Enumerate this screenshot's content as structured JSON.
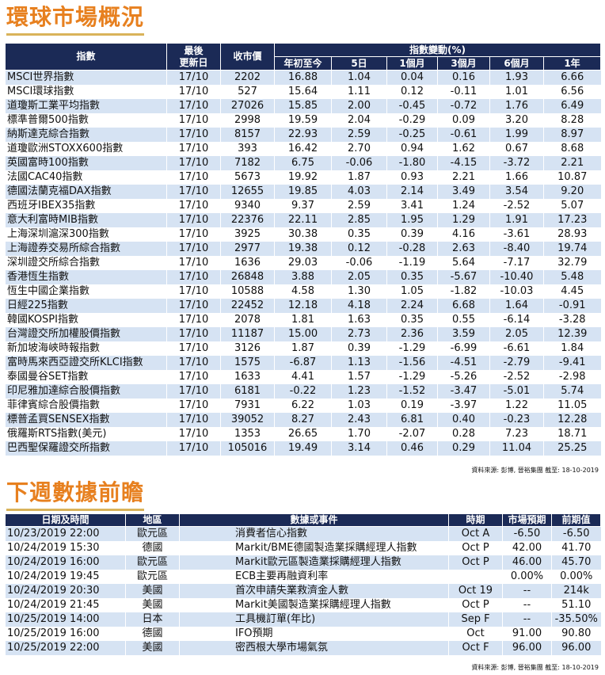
{
  "markets": {
    "title": "環球市場概況",
    "headers": {
      "index": "指數",
      "last_update": "最後\n更新日",
      "close": "收市價",
      "change_group": "指數變動(%)",
      "ytd": "年初至今",
      "d5": "5日",
      "m1": "1個月",
      "m3": "3個月",
      "m6": "6個月",
      "y1": "1年"
    },
    "rows": [
      [
        "MSCI世界指數",
        "17/10",
        "2202",
        "16.88",
        "1.04",
        "0.04",
        "0.16",
        "1.93",
        "6.66"
      ],
      [
        "MSCI環球指數",
        "17/10",
        "527",
        "15.64",
        "1.11",
        "0.12",
        "-0.11",
        "1.01",
        "6.56"
      ],
      [
        "道瓊斯工業平均指數",
        "17/10",
        "27026",
        "15.85",
        "2.00",
        "-0.45",
        "-0.72",
        "1.76",
        "6.49"
      ],
      [
        "標準普爾500指數",
        "17/10",
        "2998",
        "19.59",
        "2.04",
        "-0.29",
        "0.09",
        "3.20",
        "8.28"
      ],
      [
        "納斯達克綜合指數",
        "17/10",
        "8157",
        "22.93",
        "2.59",
        "-0.25",
        "-0.61",
        "1.99",
        "8.97"
      ],
      [
        "道瓊歐洲STOXX600指數",
        "17/10",
        "393",
        "16.42",
        "2.70",
        "0.94",
        "1.62",
        "0.67",
        "8.68"
      ],
      [
        "英國富時100指數",
        "17/10",
        "7182",
        "6.75",
        "-0.06",
        "-1.80",
        "-4.15",
        "-3.72",
        "2.21"
      ],
      [
        "法國CAC40指數",
        "17/10",
        "5673",
        "19.92",
        "1.87",
        "0.93",
        "2.21",
        "1.66",
        "10.87"
      ],
      [
        "德國法蘭克福DAX指數",
        "17/10",
        "12655",
        "19.85",
        "4.03",
        "2.14",
        "3.49",
        "3.54",
        "9.20"
      ],
      [
        "西班牙IBEX35指數",
        "17/10",
        "9340",
        "9.37",
        "2.59",
        "3.41",
        "1.24",
        "-2.52",
        "5.07"
      ],
      [
        "意大利富時MIB指數",
        "17/10",
        "22376",
        "22.11",
        "2.85",
        "1.95",
        "1.29",
        "1.91",
        "17.23"
      ],
      [
        "上海深圳滬深300指數",
        "17/10",
        "3925",
        "30.38",
        "0.35",
        "0.39",
        "4.16",
        "-3.61",
        "28.93"
      ],
      [
        "上海證券交易所綜合指數",
        "17/10",
        "2977",
        "19.38",
        "0.12",
        "-0.28",
        "2.63",
        "-8.40",
        "19.74"
      ],
      [
        "深圳證交所綜合指數",
        "17/10",
        "1636",
        "29.03",
        "-0.06",
        "-1.19",
        "5.64",
        "-7.17",
        "32.79"
      ],
      [
        "香港恆生指數",
        "17/10",
        "26848",
        "3.88",
        "2.05",
        "0.35",
        "-5.67",
        "-10.40",
        "5.48"
      ],
      [
        "恆生中國企業指數",
        "17/10",
        "10588",
        "4.58",
        "1.30",
        "1.05",
        "-1.82",
        "-10.03",
        "4.45"
      ],
      [
        "日經225指數",
        "17/10",
        "22452",
        "12.18",
        "4.18",
        "2.24",
        "6.68",
        "1.64",
        "-0.91"
      ],
      [
        "韓國KOSPI指數",
        "17/10",
        "2078",
        "1.81",
        "1.63",
        "0.35",
        "0.55",
        "-6.14",
        "-3.28"
      ],
      [
        "台灣證交所加權股價指數",
        "17/10",
        "11187",
        "15.00",
        "2.73",
        "2.36",
        "3.59",
        "2.05",
        "12.39"
      ],
      [
        "新加坡海峽時報指數",
        "17/10",
        "3126",
        "1.87",
        "0.39",
        "-1.29",
        "-6.99",
        "-6.61",
        "1.84"
      ],
      [
        "富時馬來西亞證交所KLCI指數",
        "17/10",
        "1575",
        "-6.87",
        "1.13",
        "-1.56",
        "-4.51",
        "-2.79",
        "-9.41"
      ],
      [
        "泰國曼谷SET指數",
        "17/10",
        "1633",
        "4.41",
        "1.57",
        "-1.29",
        "-5.26",
        "-2.52",
        "-2.98"
      ],
      [
        "印尼雅加達綜合股價指數",
        "17/10",
        "6181",
        "-0.22",
        "1.23",
        "-1.52",
        "-3.47",
        "-5.01",
        "5.74"
      ],
      [
        "菲律賓綜合股價指數",
        "17/10",
        "7931",
        "6.22",
        "1.03",
        "0.19",
        "-3.97",
        "1.22",
        "11.05"
      ],
      [
        "標普孟買SENSEX指數",
        "17/10",
        "39052",
        "8.27",
        "2.43",
        "6.81",
        "0.40",
        "-0.23",
        "12.28"
      ],
      [
        "俄羅斯RTS指數(美元)",
        "17/10",
        "1353",
        "26.65",
        "1.70",
        "-2.07",
        "0.28",
        "7.23",
        "18.71"
      ],
      [
        "巴西聖保羅證交所指數",
        "17/10",
        "105016",
        "19.49",
        "3.14",
        "0.46",
        "0.29",
        "11.04",
        "25.25"
      ]
    ],
    "source": "資料來源: 彭博, 晉裕集團 截至: 18-10-2019"
  },
  "calendar": {
    "title": "下週數據前瞻",
    "headers": {
      "datetime": "日期及時間",
      "region": "地區",
      "event": "數據或事件",
      "period": "時期",
      "forecast": "市場預期",
      "previous": "前期值"
    },
    "rows": [
      [
        "10/23/2019 22:00",
        "歐元區",
        "消費者信心指數",
        "Oct A",
        "-6.50",
        "-6.50"
      ],
      [
        "10/24/2019 15:30",
        "德國",
        "Markit/BME德國製造業採購經理人指數",
        "Oct P",
        "42.00",
        "41.70"
      ],
      [
        "10/24/2019 16:00",
        "歐元區",
        "Markit歐元區製造業採購經理人指數",
        "Oct P",
        "46.00",
        "45.70"
      ],
      [
        "10/24/2019 19:45",
        "歐元區",
        "ECB主要再融資利率",
        "",
        "0.00%",
        "0.00%"
      ],
      [
        "10/24/2019 20:30",
        "美國",
        "首次申請失業救濟金人數",
        "Oct 19",
        "--",
        "214k"
      ],
      [
        "10/24/2019 21:45",
        "美國",
        "Markit美國製造業採購經理人指數",
        "Oct P",
        "--",
        "51.10"
      ],
      [
        "10/25/2019 14:00",
        "日本",
        "工具機訂單(年比)",
        "Sep F",
        "--",
        "-35.50%"
      ],
      [
        "10/25/2019 16:00",
        "德國",
        "IFO預期",
        "Oct",
        "91.00",
        "90.80"
      ],
      [
        "10/25/2019 22:00",
        "美國",
        "密西根大學市場氣氛",
        "Oct F",
        "96.00",
        "96.00"
      ]
    ],
    "source": "資料來源: 彭博, 晉裕集團 截至: 18-10-2019"
  }
}
